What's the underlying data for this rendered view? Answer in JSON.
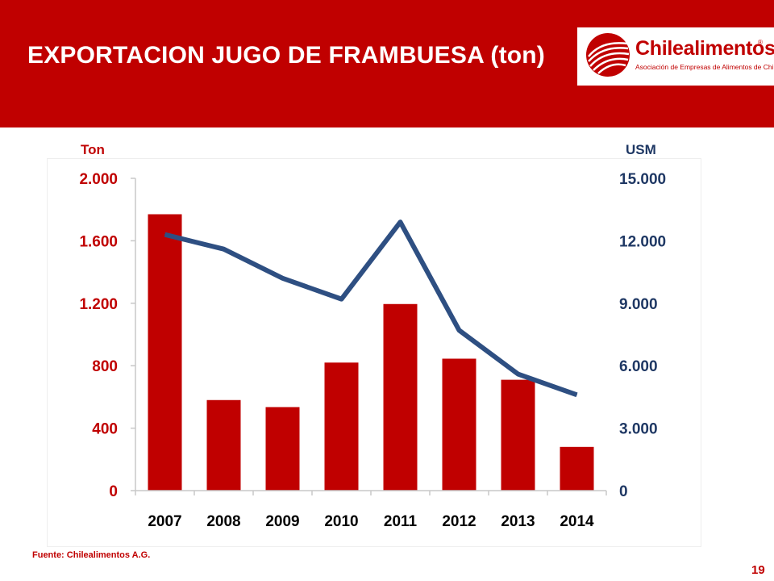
{
  "slide": {
    "title": "EXPORTACION JUGO DE FRAMBUESA (ton)",
    "source": "Fuente: Chilealimentos A.G.",
    "page_number": "19"
  },
  "logo": {
    "name": "Chilealimentos",
    "registered_mark": "®",
    "tagline": "Asociación de Empresas de Alimentos de Chile"
  },
  "colors": {
    "banner": "#c00000",
    "bars": "#c00000",
    "line": "#2e4f82",
    "right_axis_text": "#1f3864"
  },
  "chart_data": {
    "type": "bar",
    "categories": [
      "2007",
      "2008",
      "2009",
      "2010",
      "2011",
      "2012",
      "2013",
      "2014"
    ],
    "series": [
      {
        "axis": "left",
        "chart_type": "bar",
        "values": [
          1770,
          580,
          535,
          820,
          1195,
          845,
          710,
          280
        ]
      },
      {
        "axis": "right",
        "chart_type": "line",
        "values": [
          12300,
          11600,
          10200,
          9200,
          12900,
          7700,
          5600,
          4600
        ]
      }
    ],
    "y_left": {
      "label": "Ton",
      "lim": [
        0,
        2000
      ],
      "ticks": [
        "0",
        "400",
        "800",
        "1.200",
        "1.600",
        "2.000"
      ],
      "tick_values": [
        0,
        400,
        800,
        1200,
        1600,
        2000
      ]
    },
    "y_right": {
      "label": "USM",
      "lim": [
        0,
        15000
      ],
      "ticks": [
        "0",
        "3.000",
        "6.000",
        "9.000",
        "12.000",
        "15.000"
      ],
      "tick_values": [
        0,
        3000,
        6000,
        9000,
        12000,
        15000
      ]
    },
    "grid": false,
    "legend": "none"
  }
}
